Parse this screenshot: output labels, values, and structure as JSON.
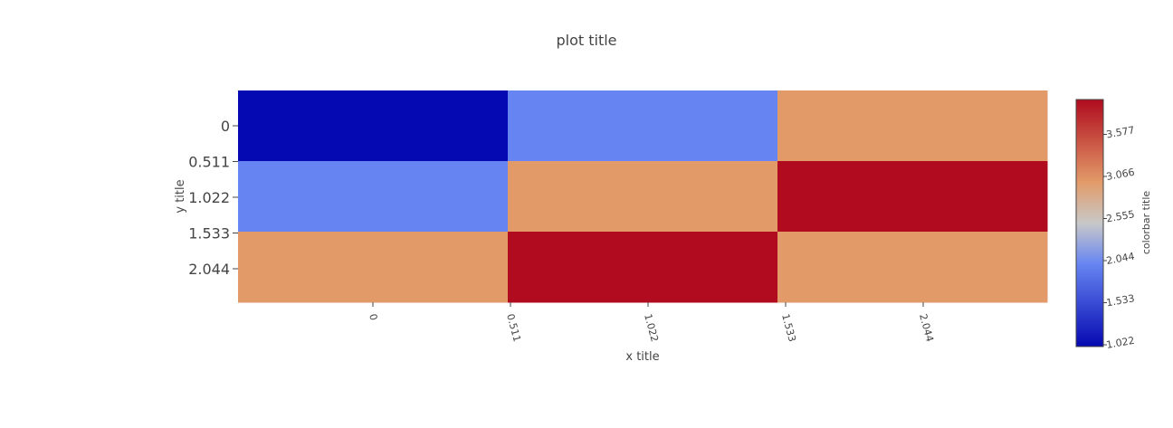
{
  "chart_data": {
    "type": "heatmap",
    "title": "plot title",
    "xlabel": "x title",
    "ylabel": "y title",
    "colorbar_title": "colorbar title",
    "x_ticks": [
      "0",
      "0.511",
      "1.022",
      "1.533",
      "2.044"
    ],
    "y_ticks": [
      "0",
      "0.511",
      "1.022",
      "1.533",
      "2.044"
    ],
    "colorbar_ticks": [
      "1.022",
      "1.533",
      "2.044",
      "2.555",
      "3.066",
      "3.577"
    ],
    "z": [
      [
        1,
        2,
        3
      ],
      [
        2,
        3,
        4
      ],
      [
        3,
        4,
        3
      ]
    ],
    "zmin": 1,
    "zmax": 4,
    "colorscale": [
      [
        0.0,
        "#0509B1"
      ],
      [
        0.333,
        "#6685F2"
      ],
      [
        0.5,
        "#C8C8C8"
      ],
      [
        0.667,
        "#E29A68"
      ],
      [
        1.0,
        "#B00B1E"
      ]
    ]
  }
}
